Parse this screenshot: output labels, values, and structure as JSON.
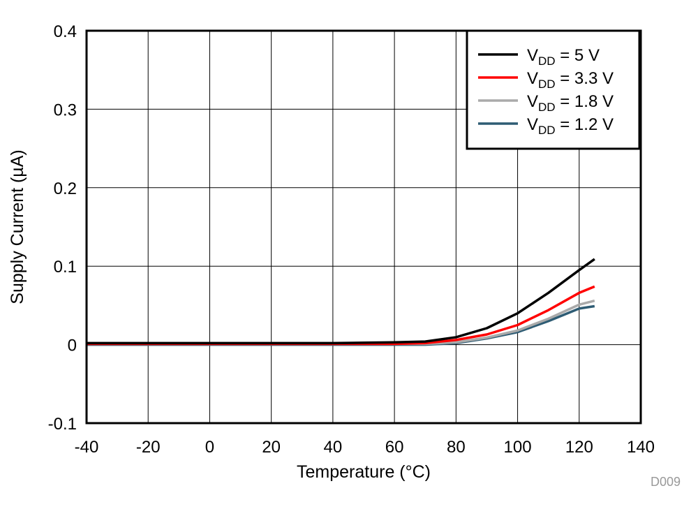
{
  "chart_data": {
    "type": "line",
    "title": "",
    "xlabel": "Temperature (°C)",
    "ylabel": "Supply Current (µA)",
    "xlim": [
      -40,
      140
    ],
    "ylim": [
      -0.1,
      0.4
    ],
    "xticks": [
      -40,
      -20,
      0,
      20,
      40,
      60,
      80,
      100,
      120,
      140
    ],
    "yticks": [
      -0.1,
      0,
      0.1,
      0.2,
      0.3,
      0.4
    ],
    "ytick_labels": [
      "-0.1",
      "0",
      "0.1",
      "0.2",
      "0.3",
      "0.4"
    ],
    "grid": true,
    "legend_placement": "top-right",
    "x": [
      -40,
      0,
      40,
      60,
      70,
      80,
      90,
      100,
      110,
      120,
      125
    ],
    "series": [
      {
        "name": "VDD = 5 V",
        "label_main": "V",
        "label_sub": "DD",
        "label_rest": " = 5 V",
        "color": "#000000",
        "values": [
          0.002,
          0.002,
          0.002,
          0.003,
          0.004,
          0.0095,
          0.021,
          0.04,
          0.066,
          0.095,
          0.109
        ]
      },
      {
        "name": "VDD = 3.3 V",
        "label_main": "V",
        "label_sub": "DD",
        "label_rest": " = 3.3 V",
        "color": "#ff0000",
        "values": [
          0.001,
          0.001,
          0.001,
          0.001,
          0.002,
          0.006,
          0.013,
          0.025,
          0.044,
          0.066,
          0.074
        ]
      },
      {
        "name": "VDD = 1.8 V",
        "label_main": "V",
        "label_sub": "DD",
        "label_rest": " = 1.8 V",
        "color": "#aaaaaa",
        "values": [
          0.001,
          0.001,
          0.001,
          0.001,
          0.001,
          0.003,
          0.009,
          0.018,
          0.033,
          0.051,
          0.056
        ]
      },
      {
        "name": "VDD = 1.2 V",
        "label_main": "V",
        "label_sub": "DD",
        "label_rest": " = 1.2 V",
        "color": "#2e5c74",
        "values": [
          0.0,
          0.0,
          0.0,
          0.0,
          0.0,
          0.002,
          0.008,
          0.016,
          0.03,
          0.046,
          0.049
        ]
      }
    ],
    "annotation": "D009"
  }
}
